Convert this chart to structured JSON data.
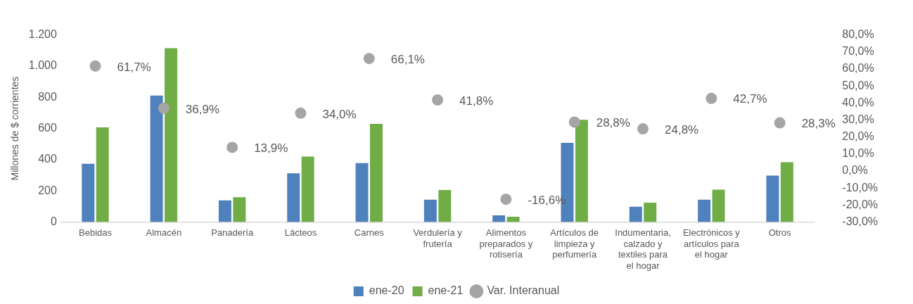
{
  "chart_data": {
    "type": "bar",
    "ylabel": "Millones de $ corrientes",
    "categories": [
      "Bebidas",
      "Almacén",
      "Panadería",
      "Lácteos",
      "Carnes",
      "Verdulería y frutería",
      "Alimentos preparados y rotisería",
      "Artículos de limpieza y perfumería",
      "Indumentaria, calzado y textiles para el hogar",
      "Electrónicos y artículos para el hogar",
      "Otros"
    ],
    "series": [
      {
        "name": "ene-20",
        "color": "#4f81bd",
        "values": [
          374,
          811,
          139,
          313,
          378,
          144,
          43,
          508,
          99,
          144,
          298
        ]
      },
      {
        "name": "ene-21",
        "color": "#70ad47",
        "values": [
          607,
          1115,
          159,
          420,
          630,
          206,
          34,
          656,
          124,
          208,
          384
        ]
      },
      {
        "name": "Var. Interanual",
        "type": "scatter",
        "axis": "y2",
        "color": "#a5a5a5",
        "marker": "circle",
        "values": [
          61.7,
          36.9,
          13.9,
          34.0,
          66.1,
          41.8,
          -16.6,
          28.8,
          24.8,
          42.7,
          28.3
        ],
        "value_labels": [
          "61,7%",
          "36,9%",
          "13,9%",
          "34,0%",
          "66,1%",
          "41,8%",
          "-16,6%",
          "28,8%",
          "24,8%",
          "42,7%",
          "28,3%"
        ]
      }
    ],
    "ylim": [
      0,
      1200
    ],
    "yticks": [
      0,
      200,
      400,
      600,
      800,
      {
        "value": 1000,
        "label": "1.000"
      },
      {
        "value": 1200,
        "label": "1.200"
      }
    ],
    "y2lim": [
      -30,
      80
    ],
    "y2ticks": [
      {
        "value": -30,
        "label": "-30,0%"
      },
      {
        "value": -20,
        "label": "-20,0%"
      },
      {
        "value": -10,
        "label": "-10,0%"
      },
      {
        "value": 0,
        "label": "0,0%"
      },
      {
        "value": 10,
        "label": "10,0%"
      },
      {
        "value": 20,
        "label": "20,0%"
      },
      {
        "value": 30,
        "label": "30,0%"
      },
      {
        "value": 40,
        "label": "40,0%"
      },
      {
        "value": 50,
        "label": "50,0%"
      },
      {
        "value": 60,
        "label": "60,0%"
      },
      {
        "value": 70,
        "label": "70,0%"
      },
      {
        "value": 80,
        "label": "80,0%"
      }
    ],
    "grid": false,
    "legend": "bottom"
  }
}
